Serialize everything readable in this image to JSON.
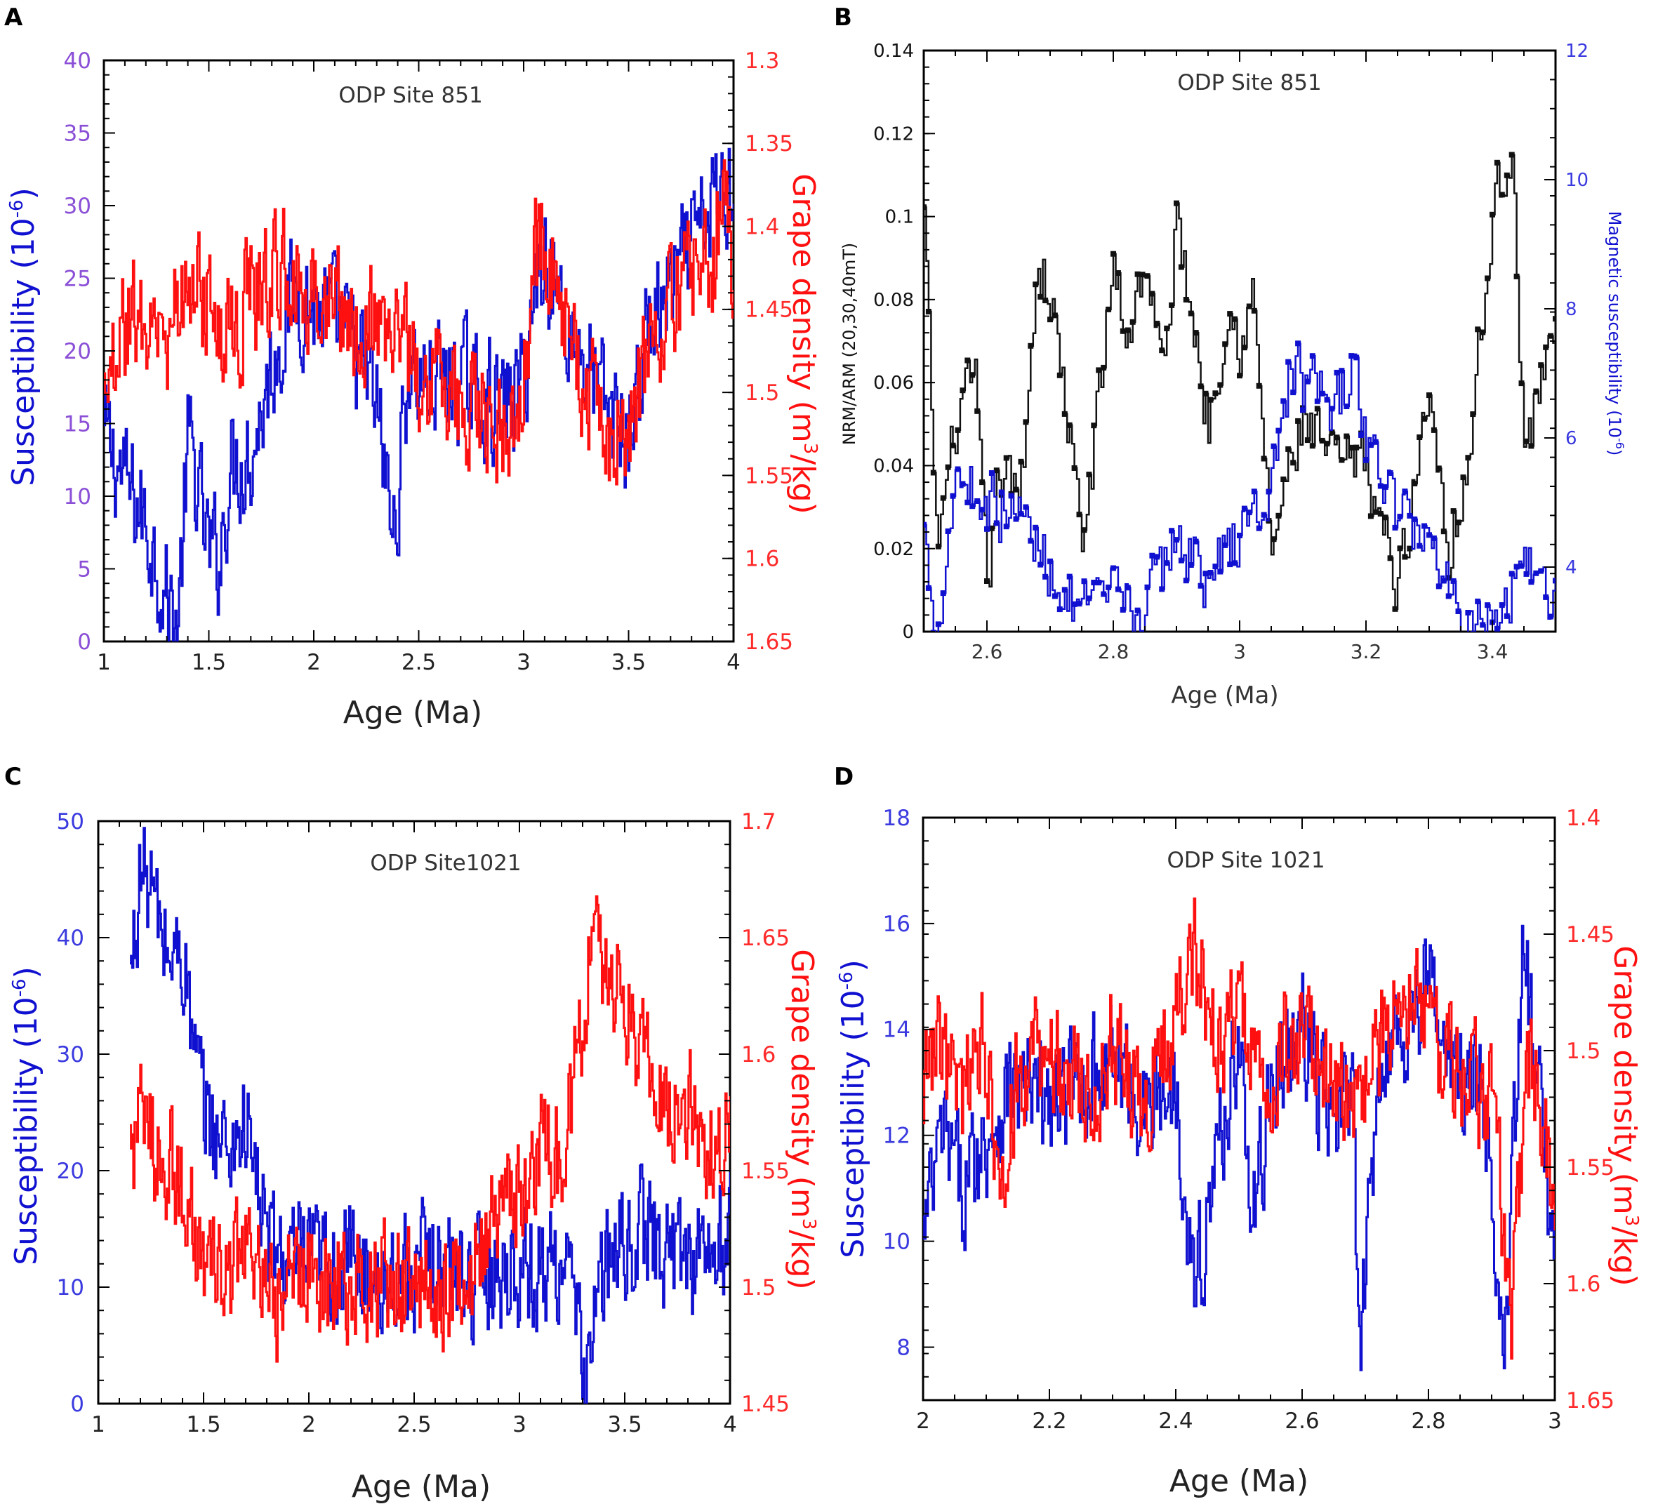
{
  "colors": {
    "blue": "#1010d0",
    "red": "#ff1010",
    "black": "#111111",
    "purple_ticks": "#8a4fd6",
    "blue_ticks": "#3a3adf",
    "red_ticks": "#ff2a2a"
  },
  "chart_data": [
    {
      "panel": "A",
      "type": "line",
      "title": "ODP Site 851",
      "xlabel": "Age (Ma)",
      "ylabel_left": "Susceptibility (10",
      "ylabel_left_sup": "-6",
      "ylabel_left_end": ")",
      "ylabel_right": "Grape density (m",
      "ylabel_right_sup": "3",
      "ylabel_right_end": "/kg)",
      "xlim": [
        1,
        4
      ],
      "ylim_left": [
        0,
        40
      ],
      "ylim_right": [
        1.3,
        1.65
      ],
      "right_axis_inverted": true,
      "x_ticks": [
        "1",
        "1.5",
        "2",
        "2.5",
        "3",
        "3.5",
        "4"
      ],
      "y_left_ticks": [
        "0",
        "5",
        "10",
        "15",
        "20",
        "25",
        "30",
        "35",
        "40"
      ],
      "y_right_ticks": [
        "1.3",
        "1.35",
        "1.4",
        "1.45",
        "1.5",
        "1.55",
        "1.6",
        "1.65"
      ],
      "series": [
        {
          "name": "Susceptibility",
          "axis": "left",
          "color": "blue",
          "x": [
            1.0,
            1.1,
            1.2,
            1.3,
            1.35,
            1.4,
            1.5,
            1.55,
            1.6,
            1.7,
            1.8,
            1.9,
            2.0,
            2.1,
            2.2,
            2.3,
            2.38,
            2.45,
            2.5,
            2.6,
            2.7,
            2.8,
            2.9,
            3.0,
            3.05,
            3.1,
            3.2,
            3.3,
            3.4,
            3.5,
            3.6,
            3.7,
            3.8,
            3.9,
            4.0
          ],
          "values": [
            14,
            11,
            8,
            3,
            1,
            14,
            6,
            6,
            12,
            13,
            19,
            24,
            23,
            22,
            20,
            16,
            7,
            19,
            18,
            18,
            18,
            17,
            16,
            18,
            24,
            27,
            22,
            19,
            16,
            14,
            22,
            24,
            27,
            30,
            32
          ]
        },
        {
          "name": "Grape density",
          "axis": "right",
          "color": "red",
          "x": [
            1.0,
            1.1,
            1.2,
            1.3,
            1.4,
            1.5,
            1.6,
            1.7,
            1.8,
            1.9,
            2.0,
            2.1,
            2.2,
            2.3,
            2.4,
            2.5,
            2.6,
            2.7,
            2.8,
            2.9,
            3.0,
            3.05,
            3.1,
            3.2,
            3.3,
            3.4,
            3.5,
            3.6,
            3.7,
            3.8,
            3.9,
            3.95,
            4.0
          ],
          "values": [
            1.48,
            1.46,
            1.45,
            1.47,
            1.43,
            1.45,
            1.47,
            1.44,
            1.43,
            1.42,
            1.45,
            1.44,
            1.47,
            1.46,
            1.46,
            1.49,
            1.49,
            1.51,
            1.51,
            1.53,
            1.49,
            1.42,
            1.41,
            1.46,
            1.5,
            1.53,
            1.52,
            1.48,
            1.44,
            1.43,
            1.43,
            1.36,
            1.45
          ]
        }
      ]
    },
    {
      "panel": "B",
      "type": "line",
      "title": "ODP Site 851",
      "xlabel": "Age (Ma)",
      "ylabel_left": "NRM/ARM (20,30,40mT)",
      "ylabel_right": "Magnetic susceptibility (10",
      "ylabel_right_sup": "-6",
      "ylabel_right_end": ")",
      "xlim": [
        2.5,
        3.5
      ],
      "ylim_left": [
        0,
        0.14
      ],
      "ylim_right": [
        3,
        12
      ],
      "x_ticks": [
        "2.6",
        "2.8",
        "3",
        "3.2",
        "3.4"
      ],
      "y_left_ticks": [
        "0",
        "0.02",
        "0.04",
        "0.06",
        "0.08",
        "0.1",
        "0.12",
        "0.14"
      ],
      "y_right_ticks": [
        "4",
        "6",
        "8",
        "10",
        "12"
      ],
      "series": [
        {
          "name": "NRM/ARM",
          "axis": "left",
          "color": "black",
          "x": [
            2.5,
            2.52,
            2.55,
            2.58,
            2.6,
            2.62,
            2.65,
            2.68,
            2.7,
            2.72,
            2.75,
            2.78,
            2.8,
            2.82,
            2.85,
            2.88,
            2.9,
            2.92,
            2.95,
            2.98,
            3.0,
            3.02,
            3.05,
            3.08,
            3.1,
            3.15,
            3.2,
            3.25,
            3.3,
            3.33,
            3.36,
            3.4,
            3.43,
            3.45,
            3.5
          ],
          "values": [
            0.1,
            0.02,
            0.05,
            0.06,
            0.01,
            0.04,
            0.03,
            0.09,
            0.08,
            0.06,
            0.02,
            0.06,
            0.09,
            0.07,
            0.09,
            0.06,
            0.1,
            0.08,
            0.05,
            0.08,
            0.07,
            0.08,
            0.02,
            0.04,
            0.05,
            0.04,
            0.04,
            0.01,
            0.06,
            0.02,
            0.04,
            0.1,
            0.12,
            0.04,
            0.08
          ]
        },
        {
          "name": "Magnetic susceptibility",
          "axis": "right",
          "color": "blue",
          "x": [
            2.5,
            2.52,
            2.55,
            2.6,
            2.65,
            2.7,
            2.75,
            2.8,
            2.85,
            2.9,
            2.95,
            3.0,
            3.05,
            3.08,
            3.1,
            3.15,
            3.18,
            3.2,
            3.25,
            3.3,
            3.35,
            3.38,
            3.4,
            3.45,
            3.5
          ],
          "values": [
            4.5,
            3,
            5.5,
            5,
            4.8,
            4,
            3.2,
            3.5,
            3.3,
            4.5,
            3.8,
            4.5,
            5.2,
            7.2,
            6.8,
            6.5,
            7.0,
            6.0,
            4.8,
            4.5,
            3.2,
            3.5,
            3.0,
            4.2,
            3.5
          ]
        }
      ]
    },
    {
      "panel": "C",
      "type": "line",
      "title": "ODP Site1021",
      "xlabel": "Age (Ma)",
      "ylabel_left": "Susceptibility (10",
      "ylabel_left_sup": "-6",
      "ylabel_left_end": ")",
      "ylabel_right": "Grape density (m",
      "ylabel_right_sup": "3",
      "ylabel_right_end": "/kg)",
      "xlim": [
        1,
        4
      ],
      "ylim_left": [
        0,
        50
      ],
      "ylim_right": [
        1.45,
        1.7
      ],
      "x_ticks": [
        "1",
        "1.5",
        "2",
        "2.5",
        "3",
        "3.5",
        "4"
      ],
      "y_left_ticks": [
        "0",
        "10",
        "20",
        "30",
        "40",
        "50"
      ],
      "y_right_ticks": [
        "1.45",
        "1.5",
        "1.55",
        "1.6",
        "1.65",
        "1.7"
      ],
      "series": [
        {
          "name": "Susceptibility",
          "axis": "left",
          "color": "blue",
          "x": [
            1.15,
            1.2,
            1.25,
            1.3,
            1.35,
            1.4,
            1.45,
            1.5,
            1.6,
            1.7,
            1.8,
            1.9,
            2.0,
            2.2,
            2.4,
            2.6,
            2.8,
            3.0,
            3.1,
            3.2,
            3.25,
            3.3,
            3.4,
            3.5,
            3.6,
            3.7,
            3.8,
            3.9,
            4.0
          ],
          "values": [
            36,
            46,
            44,
            40,
            38,
            39,
            30,
            25,
            22,
            24,
            14,
            12,
            12,
            12,
            11,
            12,
            11,
            12,
            11,
            13,
            9,
            3,
            11,
            14,
            15,
            13,
            13,
            13,
            14
          ]
        },
        {
          "name": "Grape density",
          "axis": "right",
          "color": "red",
          "x": [
            1.15,
            1.2,
            1.3,
            1.4,
            1.5,
            1.6,
            1.7,
            1.8,
            1.9,
            2.0,
            2.2,
            2.4,
            2.6,
            2.8,
            2.9,
            3.0,
            3.1,
            3.2,
            3.3,
            3.35,
            3.4,
            3.5,
            3.6,
            3.7,
            3.8,
            3.9,
            4.0
          ],
          "values": [
            1.56,
            1.57,
            1.56,
            1.54,
            1.51,
            1.5,
            1.52,
            1.49,
            1.5,
            1.51,
            1.5,
            1.5,
            1.5,
            1.51,
            1.53,
            1.54,
            1.56,
            1.55,
            1.62,
            1.65,
            1.64,
            1.62,
            1.6,
            1.58,
            1.58,
            1.56,
            1.57
          ]
        }
      ]
    },
    {
      "panel": "D",
      "type": "line",
      "title": "ODP Site 1021",
      "xlabel": "Age (Ma)",
      "ylabel_left": "Susceptibility (10",
      "ylabel_left_sup": "-6",
      "ylabel_left_end": ")",
      "ylabel_right": "Grape density (m",
      "ylabel_right_sup": "3",
      "ylabel_right_end": "/kg)",
      "xlim": [
        2,
        3
      ],
      "ylim_left": [
        7,
        18
      ],
      "ylim_right": [
        1.4,
        1.65
      ],
      "right_axis_inverted": true,
      "x_ticks": [
        "2",
        "2.2",
        "2.4",
        "2.6",
        "2.8",
        "3"
      ],
      "y_left_ticks": [
        "8",
        "10",
        "12",
        "14",
        "16",
        "18"
      ],
      "y_right_ticks": [
        "1.4",
        "1.45",
        "1.5",
        "1.55",
        "1.6",
        "1.65"
      ],
      "series": [
        {
          "name": "Susceptibility",
          "axis": "left",
          "color": "blue",
          "x": [
            2.0,
            2.03,
            2.06,
            2.1,
            2.14,
            2.2,
            2.25,
            2.3,
            2.35,
            2.4,
            2.43,
            2.47,
            2.5,
            2.52,
            2.55,
            2.6,
            2.65,
            2.68,
            2.69,
            2.72,
            2.76,
            2.8,
            2.84,
            2.88,
            2.92,
            2.95,
            2.97,
            3.0
          ],
          "values": [
            10,
            12,
            11,
            12,
            13,
            12.5,
            13,
            13.5,
            12.5,
            13,
            9,
            12,
            14,
            10,
            13,
            14,
            12,
            13,
            7.2,
            13.5,
            14,
            15,
            13,
            13,
            8.5,
            15.5,
            13,
            10
          ]
        },
        {
          "name": "Grape density",
          "axis": "right",
          "color": "red",
          "x": [
            2.0,
            2.03,
            2.06,
            2.09,
            2.12,
            2.15,
            2.2,
            2.25,
            2.3,
            2.35,
            2.4,
            2.43,
            2.47,
            2.5,
            2.53,
            2.57,
            2.6,
            2.65,
            2.7,
            2.75,
            2.8,
            2.85,
            2.9,
            2.93,
            2.96,
            3.0
          ],
          "values": [
            1.52,
            1.5,
            1.53,
            1.49,
            1.55,
            1.51,
            1.5,
            1.52,
            1.5,
            1.52,
            1.48,
            1.46,
            1.5,
            1.47,
            1.52,
            1.5,
            1.49,
            1.51,
            1.52,
            1.47,
            1.49,
            1.51,
            1.52,
            1.62,
            1.5,
            1.57
          ]
        }
      ]
    }
  ]
}
